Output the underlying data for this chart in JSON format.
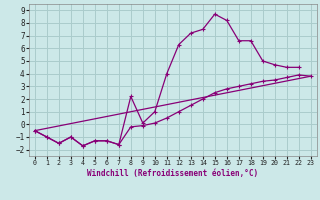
{
  "xlabel": "Windchill (Refroidissement éolien,°C)",
  "background_color": "#cce8e8",
  "grid_color": "#aacccc",
  "line_color": "#880077",
  "xlim": [
    -0.5,
    23.5
  ],
  "ylim": [
    -2.5,
    9.5
  ],
  "xticks": [
    0,
    1,
    2,
    3,
    4,
    5,
    6,
    7,
    8,
    9,
    10,
    11,
    12,
    13,
    14,
    15,
    16,
    17,
    18,
    19,
    20,
    21,
    22,
    23
  ],
  "yticks": [
    -2,
    -1,
    0,
    1,
    2,
    3,
    4,
    5,
    6,
    7,
    8,
    9
  ],
  "line1_x": [
    0,
    1,
    2,
    3,
    4,
    5,
    6,
    7,
    8,
    9,
    10,
    11,
    12,
    13,
    14,
    15,
    16,
    17,
    18,
    19,
    20,
    21,
    22
  ],
  "line1_y": [
    -0.5,
    -1.0,
    -1.5,
    -1.0,
    -1.7,
    -1.3,
    -1.3,
    -1.6,
    2.2,
    0.1,
    1.0,
    4.0,
    6.3,
    7.2,
    7.5,
    8.7,
    8.2,
    6.6,
    6.6,
    5.0,
    4.7,
    4.5,
    4.5
  ],
  "line2_x": [
    0,
    1,
    2,
    3,
    4,
    5,
    6,
    7,
    8,
    9,
    10,
    11,
    12,
    13,
    14,
    15,
    16,
    17,
    18,
    19,
    20,
    21,
    22,
    23
  ],
  "line2_y": [
    -0.5,
    -1.0,
    -1.5,
    -1.0,
    -1.7,
    -1.3,
    -1.3,
    -1.6,
    -0.2,
    -0.1,
    0.1,
    0.5,
    1.0,
    1.5,
    2.0,
    2.5,
    2.8,
    3.0,
    3.2,
    3.4,
    3.5,
    3.7,
    3.9,
    3.8
  ],
  "line3_x": [
    0,
    23
  ],
  "line3_y": [
    -0.5,
    3.8
  ]
}
